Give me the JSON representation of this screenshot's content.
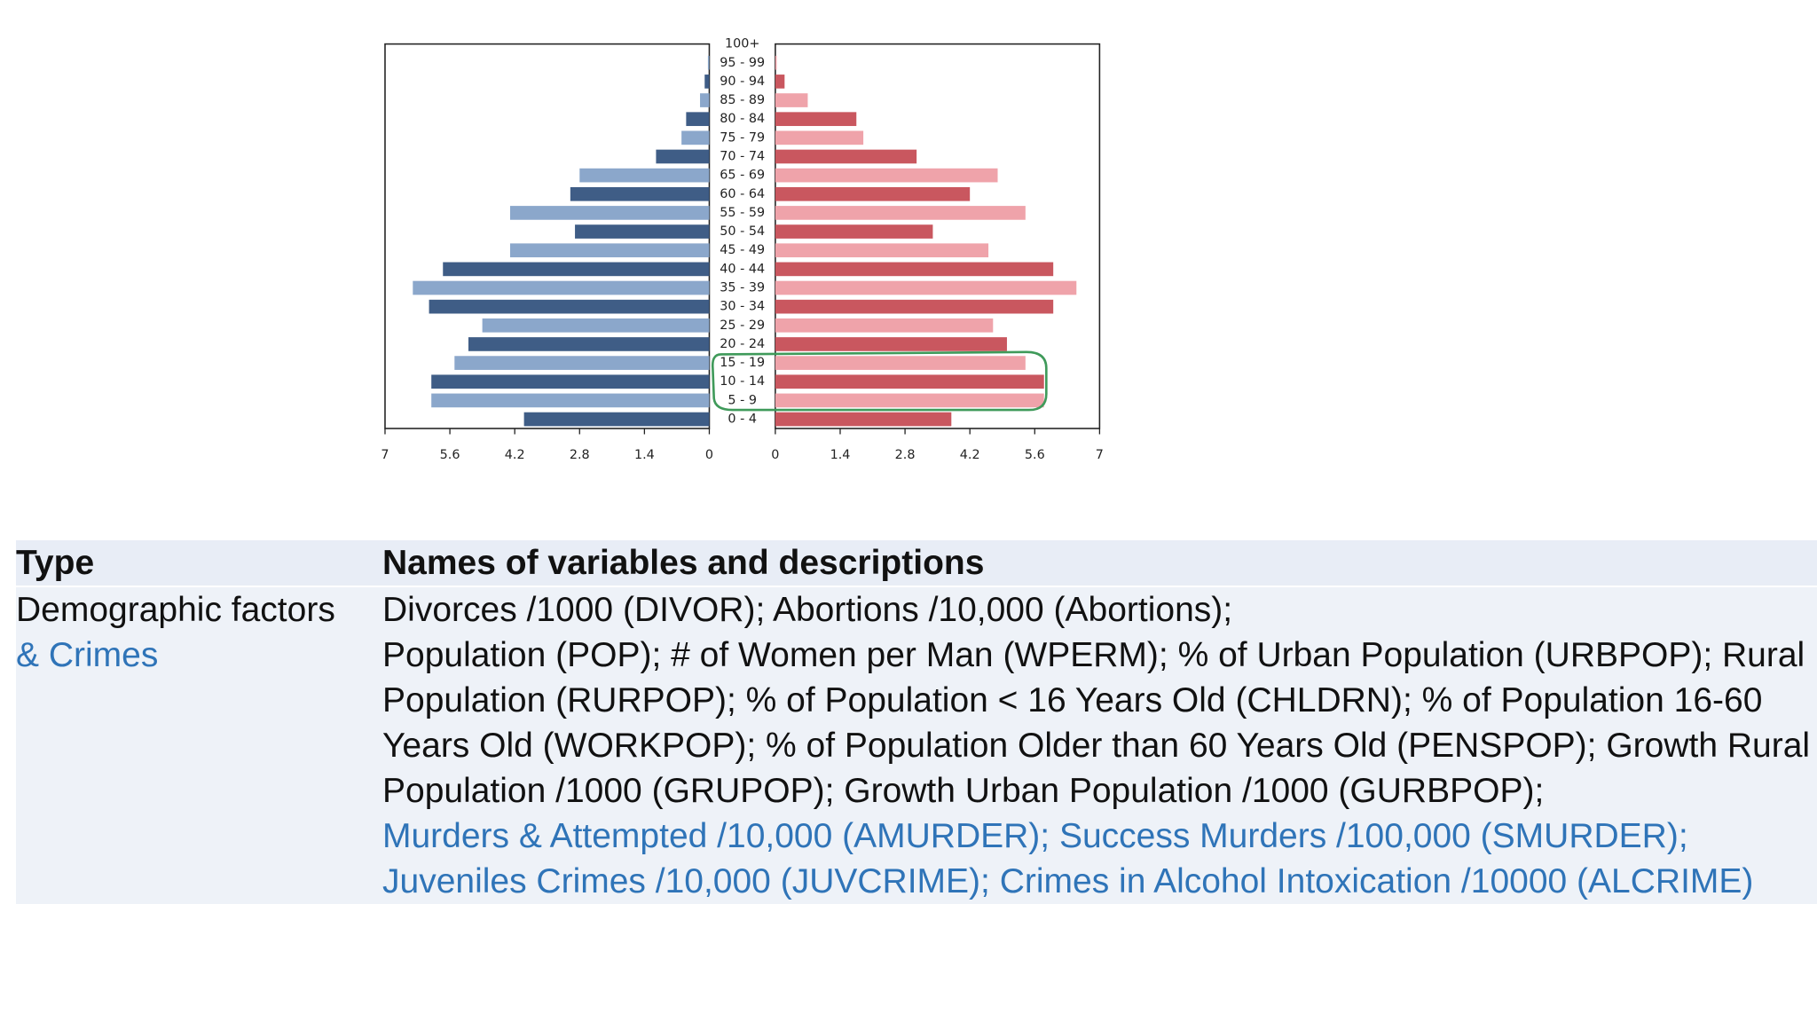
{
  "chart_data": {
    "type": "pyramid",
    "categories": [
      "0 - 4",
      "5 - 9",
      "10 - 14",
      "15 - 19",
      "20 - 24",
      "25 - 29",
      "30 - 34",
      "35 - 39",
      "40 - 44",
      "45 - 49",
      "50 - 54",
      "55 - 59",
      "60 - 64",
      "65 - 69",
      "70 - 74",
      "75 - 79",
      "80 - 84",
      "85 - 89",
      "90 - 94",
      "95 - 99",
      "100+"
    ],
    "series": [
      {
        "side": "left",
        "colors": [
          "#3f5d86",
          "#8ba7cb"
        ],
        "values": [
          4.0,
          6.0,
          6.0,
          5.5,
          5.2,
          4.9,
          6.05,
          6.4,
          5.75,
          4.3,
          2.9,
          4.3,
          3.0,
          2.8,
          1.15,
          0.6,
          0.5,
          0.2,
          0.1,
          0.03,
          0
        ]
      },
      {
        "side": "right",
        "colors": [
          "#c9575f",
          "#efa3aa"
        ],
        "values": [
          3.8,
          5.8,
          5.8,
          5.4,
          5.0,
          4.7,
          6.0,
          6.5,
          6.0,
          4.6,
          3.4,
          5.4,
          4.2,
          4.8,
          3.05,
          1.9,
          1.75,
          0.7,
          0.2,
          0.03,
          0
        ]
      }
    ],
    "xlim": [
      0,
      7
    ],
    "xticks": [
      0,
      1.4,
      2.8,
      4.2,
      5.6,
      7
    ]
  },
  "table": {
    "header": [
      "Type",
      "Names of variables and descriptions"
    ],
    "type": [
      "Demographic factors",
      "& Crimes"
    ],
    "description": [
      "Divorces /1000 (DIVOR); Abortions /10,000 (Abortions);",
      "Population (POP); # of Women per Man (WPERM); % of Urban Population (URBPOP); Rural Population (RURPOP); % of Population < 16 Years Old (CHLDRN); % of Population 16-60 Years Old (WORKPOP); % of Population Older than 60 Years Old (PENSPOP); Growth Rural Population /1000 (GRUPOP); Growth Urban Population /1000 (GURBPOP);",
      "Murders & Attempted /10,000 (AMURDER); Success Murders /100,000 (SMURDER); Juveniles Crimes /10,000 (JUVCRIME); Crimes in Alcohol Intoxication /10000 (ALCRIME)"
    ]
  }
}
